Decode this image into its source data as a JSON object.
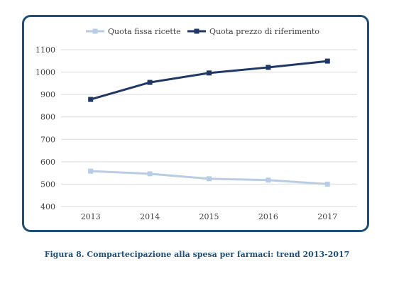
{
  "caption": "Figura 8. Compartecipazione alla spesa per farmaci: trend 2013-2017",
  "chart_data": {
    "type": "line",
    "title": "",
    "xlabel": "",
    "ylabel": "",
    "categories": [
      "2013",
      "2014",
      "2015",
      "2016",
      "2017"
    ],
    "ylim": [
      400,
      1100
    ],
    "yticks": [
      400,
      500,
      600,
      700,
      800,
      900,
      1000,
      1100
    ],
    "grid": true,
    "legend_position": "top",
    "series": [
      {
        "name": "Quota fissa ricette",
        "values": [
          558,
          546,
          524,
          518,
          500
        ],
        "color": "#b8cce4",
        "marker": "square"
      },
      {
        "name": "Quota prezzo di riferimento",
        "values": [
          878,
          954,
          996,
          1021,
          1049
        ],
        "color": "#1f3864",
        "marker": "square"
      }
    ]
  }
}
